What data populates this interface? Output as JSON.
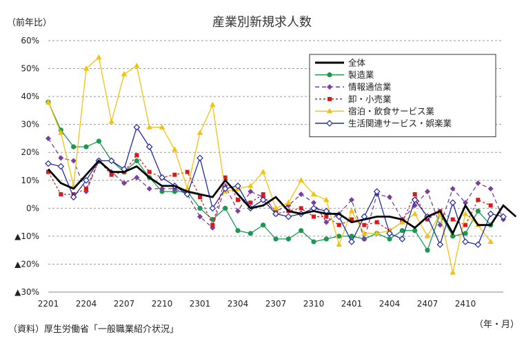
{
  "unit_label": "（前年比）",
  "source_note": "（資料）厚生労働省「一般職業紹介状況」",
  "x_unit": "（年・月）",
  "chart_data": {
    "type": "line",
    "title": "産業別新規求人数",
    "ylim": [
      -30,
      60
    ],
    "y_ticks": [
      60,
      50,
      40,
      30,
      20,
      10,
      0,
      -10,
      -20,
      -30
    ],
    "y_tick_labels": [
      "60%",
      "50%",
      "40%",
      "30%",
      "20%",
      "10%",
      "0%",
      "▲10%",
      "▲20%",
      "▲30%"
    ],
    "x_tick_labels": [
      "2201",
      "2204",
      "2207",
      "2210",
      "2301",
      "2304",
      "2307",
      "2310",
      "2401",
      "2404",
      "2407",
      "2410"
    ],
    "legend_position": "top-right",
    "grid": "horizontal-dashed",
    "series": [
      {
        "name": "全体",
        "color": "#000000",
        "marker": "none",
        "dash": "",
        "values": [
          14,
          9,
          7,
          12,
          17,
          13,
          13,
          15,
          11,
          8,
          8,
          6,
          5,
          4,
          10,
          5,
          0,
          1,
          4,
          -1,
          -2,
          -1,
          -2,
          -2,
          -5,
          -4,
          -3,
          -3,
          -4,
          -7,
          -3,
          -1,
          -9,
          1,
          -6,
          -6,
          1,
          -3
        ]
      },
      {
        "name": "製造業",
        "color": "#1a9850",
        "marker": "circle",
        "dash": "",
        "values": [
          38,
          28,
          22,
          22,
          24,
          17,
          13,
          17,
          11,
          6,
          6,
          6,
          0,
          -4,
          0,
          -8,
          -9,
          -6,
          -11,
          -11,
          -8,
          -12,
          -11,
          -10,
          -10,
          -11,
          -9,
          -11,
          -8,
          -8,
          -15,
          -2,
          -10,
          -9,
          -1,
          -6
        ]
      },
      {
        "name": "情報通信業",
        "color": "#7b3f9e",
        "marker": "diamond",
        "dash": "6,4",
        "values": [
          25,
          18,
          17,
          6,
          17,
          13,
          9,
          11,
          7,
          7,
          7,
          5,
          -3,
          -7,
          8,
          -1,
          6,
          4,
          -1,
          1,
          5,
          2,
          -5,
          -2,
          3,
          -11,
          5,
          4,
          -4,
          1,
          6,
          -6,
          7,
          2,
          9,
          7,
          -4
        ]
      },
      {
        "name": "卸・小売業",
        "color": "#d7191c",
        "marker": "square",
        "dash": "3,3",
        "values": [
          13,
          5,
          5,
          7,
          17,
          12,
          13,
          19,
          13,
          11,
          12,
          13,
          4,
          -6,
          11,
          3,
          2,
          5,
          -2,
          -1,
          0,
          -3,
          -3,
          -6,
          -4,
          -6,
          -5,
          -8,
          -5,
          5,
          -4,
          -1,
          -4,
          -6,
          3,
          1
        ]
      },
      {
        "name": "宿泊・飲食サービス業",
        "color": "#f4c20d",
        "marker": "triangle",
        "dash": "",
        "values": [
          38,
          27,
          8,
          50,
          54,
          31,
          48,
          51,
          29,
          29,
          21,
          7,
          27,
          37,
          6,
          7,
          8,
          13,
          0,
          2,
          10,
          5,
          3,
          -13,
          -1,
          -9,
          -9,
          -8,
          -5,
          -2,
          -10,
          -2,
          -23,
          -2,
          -6,
          -12
        ]
      },
      {
        "name": "生活関連サービス・娯楽業",
        "color": "#1f2aa6",
        "marker": "diamond-open",
        "dash": "",
        "values": [
          16,
          15,
          4,
          10,
          17,
          17,
          14,
          29,
          22,
          11,
          8,
          5,
          18,
          0,
          7,
          8,
          0,
          3,
          -2,
          -3,
          -2,
          0,
          -1,
          -3,
          -12,
          -3,
          6,
          -9,
          -11,
          3,
          -3,
          -13,
          2,
          -12,
          -13,
          -2,
          -3
        ]
      }
    ]
  }
}
